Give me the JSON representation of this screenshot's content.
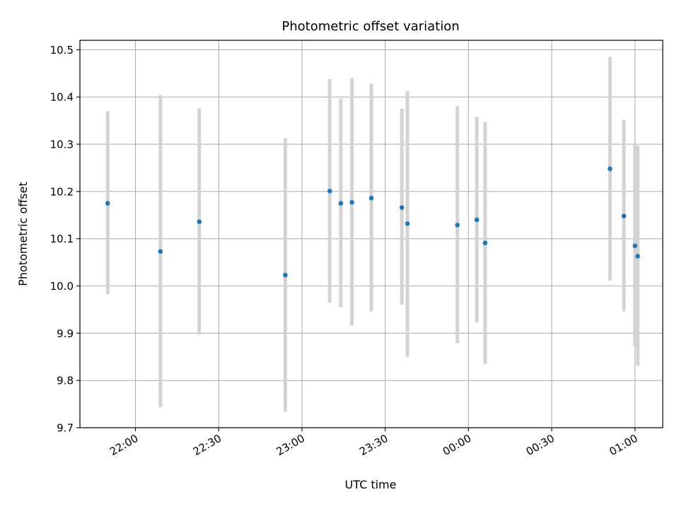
{
  "chart_data": {
    "type": "scatter",
    "title": "Photometric offset variation",
    "xlabel": "UTC time",
    "ylabel": "Photometric offset",
    "ylim": [
      9.7,
      10.52
    ],
    "xlim": [
      "21:40",
      "01:10"
    ],
    "yticks": [
      "9.7",
      "9.8",
      "9.9",
      "10.0",
      "10.1",
      "10.2",
      "10.3",
      "10.4",
      "10.5"
    ],
    "xticks": [
      "22:00",
      "22:30",
      "23:00",
      "23:30",
      "00:00",
      "00:30",
      "01:00"
    ],
    "grid": true,
    "legend": "none",
    "marker_color": "#1f77b4",
    "errorbar_color": "#d3d3d3",
    "points": [
      {
        "x": "21:50",
        "y": 10.175,
        "low": 9.983,
        "high": 10.37
      },
      {
        "x": "22:09",
        "y": 10.073,
        "low": 9.743,
        "high": 10.404
      },
      {
        "x": "22:23",
        "y": 10.136,
        "low": 9.897,
        "high": 10.376
      },
      {
        "x": "22:54",
        "y": 10.023,
        "low": 9.734,
        "high": 10.313
      },
      {
        "x": "23:10",
        "y": 10.201,
        "low": 9.965,
        "high": 10.438
      },
      {
        "x": "23:14",
        "y": 10.175,
        "low": 9.955,
        "high": 10.397
      },
      {
        "x": "23:18",
        "y": 10.177,
        "low": 9.916,
        "high": 10.44
      },
      {
        "x": "23:25",
        "y": 10.186,
        "low": 9.946,
        "high": 10.428
      },
      {
        "x": "23:36",
        "y": 10.166,
        "low": 9.96,
        "high": 10.375
      },
      {
        "x": "23:38",
        "y": 10.132,
        "low": 9.85,
        "high": 10.413
      },
      {
        "x": "23:56",
        "y": 10.129,
        "low": 9.879,
        "high": 10.38
      },
      {
        "x": "00:03",
        "y": 10.14,
        "low": 9.923,
        "high": 10.358
      },
      {
        "x": "00:06",
        "y": 10.091,
        "low": 9.835,
        "high": 10.347
      },
      {
        "x": "00:51",
        "y": 10.248,
        "low": 10.011,
        "high": 10.485
      },
      {
        "x": "00:56",
        "y": 10.148,
        "low": 9.946,
        "high": 10.352
      },
      {
        "x": "01:00",
        "y": 10.085,
        "low": 9.872,
        "high": 10.298
      },
      {
        "x": "01:01",
        "y": 10.063,
        "low": 9.831,
        "high": 10.297
      }
    ]
  }
}
